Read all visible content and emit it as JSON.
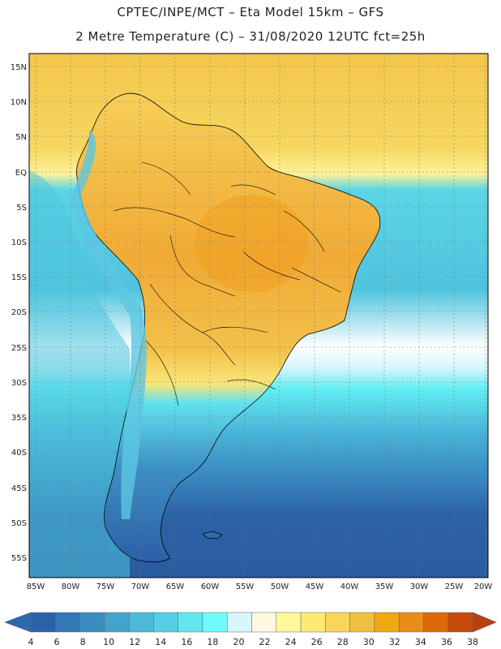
{
  "header": {
    "line1": "CPTEC/INPE/MCT –  Eta Model 15km – GFS",
    "line2": "2 Metre Temperature (C) – 31/08/2020 12UTC fct=25h"
  },
  "lat_labels": [
    "15N",
    "10N",
    "5N",
    "EQ",
    "5S",
    "10S",
    "15S",
    "20S",
    "25S",
    "30S",
    "35S",
    "40S",
    "45S",
    "50S",
    "55S"
  ],
  "lon_labels": [
    "85W",
    "80W",
    "75W",
    "70W",
    "65W",
    "60W",
    "55W",
    "50W",
    "45W",
    "40W",
    "35W",
    "30W",
    "25W",
    "20W"
  ],
  "colorbar": {
    "labels": [
      "4",
      "6",
      "8",
      "10",
      "12",
      "14",
      "16",
      "18",
      "20",
      "22",
      "24",
      "26",
      "28",
      "30",
      "32",
      "34",
      "36",
      "38"
    ],
    "colors": [
      "#2a62a8",
      "#3178b4",
      "#3a8cc1",
      "#43a3cc",
      "#4cb9d9",
      "#55cfe4",
      "#62e6ee",
      "#6ffbfb",
      "#d8f7fb",
      "#fff8e0",
      "#fff89a",
      "#ffe975",
      "#f8d65a",
      "#f0c040",
      "#f0a90f",
      "#e88c1a",
      "#dc6a0a",
      "#c84a08"
    ],
    "under_color": "#2e68b0",
    "over_color": "#b8400c"
  },
  "colors": {
    "ocean_deep": "#2c5fa6",
    "ocean_mid": "#3f9ccb",
    "ocean_cyan": "#5fe0ea",
    "land_warm": "#f5d255",
    "land_hot": "#f0a830",
    "land_cold": "#3a7ebd",
    "border": "#000000"
  }
}
